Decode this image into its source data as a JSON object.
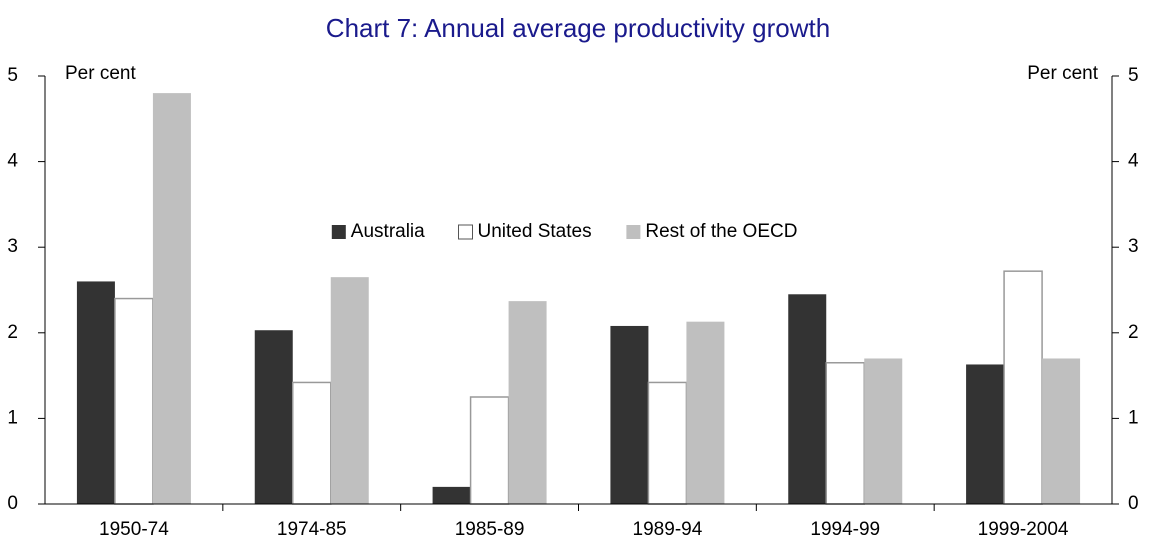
{
  "chart_data": {
    "type": "bar",
    "title": "Chart 7: Annual average productivity growth",
    "y_label": "Per cent",
    "y2_label": "Per cent",
    "categories": [
      "1950-74",
      "1974-85",
      "1985-89",
      "1989-94",
      "1994-99",
      "1999-2004"
    ],
    "series": [
      {
        "name": "Australia",
        "color": "#333333",
        "values": [
          2.6,
          2.03,
          0.2,
          2.08,
          2.45,
          1.63
        ]
      },
      {
        "name": "United States",
        "color": "#ffffff",
        "values": [
          2.4,
          1.42,
          1.25,
          1.42,
          1.65,
          2.72
        ]
      },
      {
        "name": "Rest of the OECD",
        "color": "#bfbfbf",
        "values": [
          4.8,
          2.65,
          2.37,
          2.13,
          1.7,
          1.7
        ]
      }
    ],
    "ylim": [
      0,
      5
    ],
    "yticks": [
      0,
      1,
      2,
      3,
      4,
      5
    ],
    "y2lim": [
      0,
      5
    ],
    "y2ticks": [
      0,
      1,
      2,
      3,
      4,
      5
    ],
    "legend": "center",
    "grid": false
  }
}
